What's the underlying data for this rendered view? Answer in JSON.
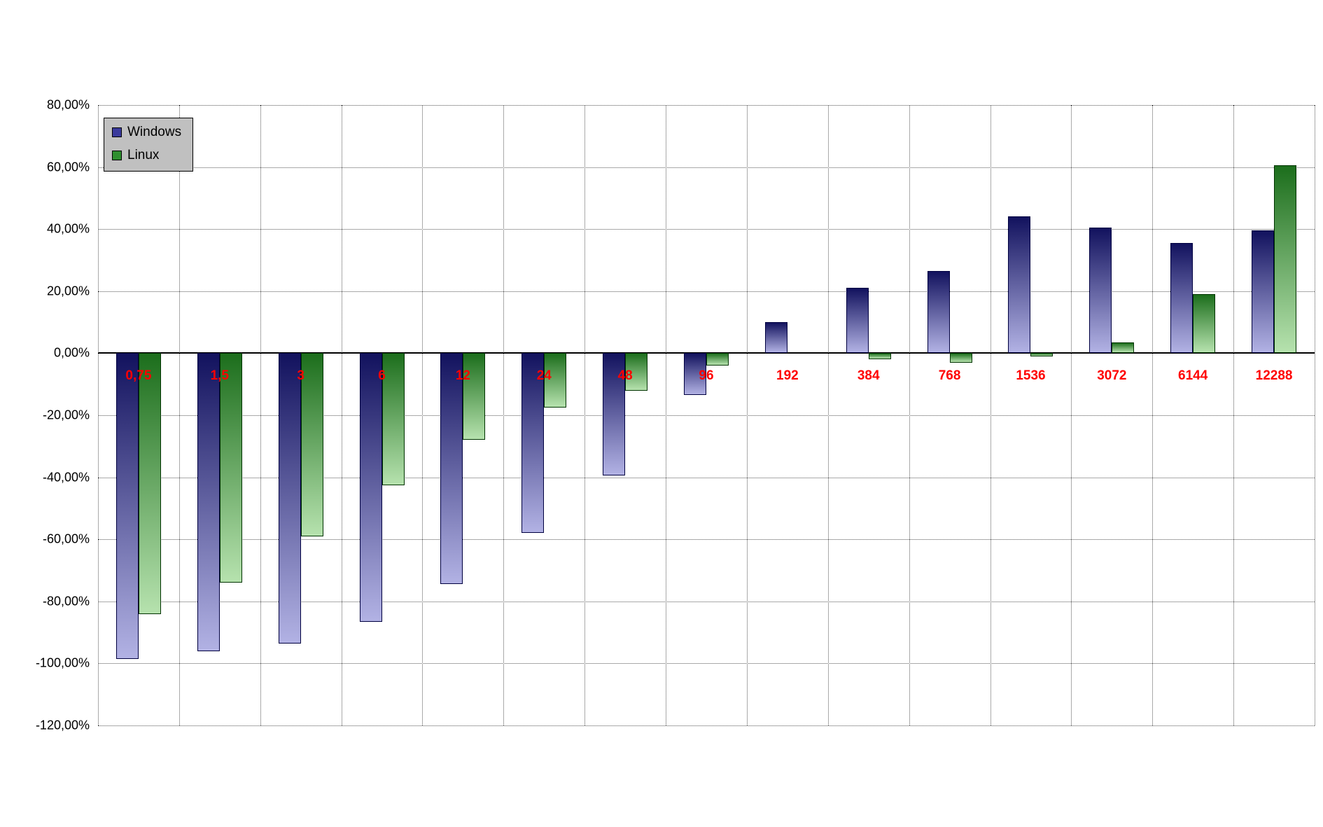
{
  "chart_data": {
    "type": "bar",
    "title": "",
    "xlabel": "",
    "ylabel": "",
    "ylim": [
      -120,
      80
    ],
    "grid": true,
    "categories": [
      "0,75",
      "1,5",
      "3",
      "6",
      "12",
      "24",
      "48",
      "96",
      "192",
      "384",
      "768",
      "1536",
      "3072",
      "6144",
      "12288"
    ],
    "category_label_color": "#ff0000",
    "series": [
      {
        "name": "Windows",
        "values": [
          -98.5,
          -96,
          -93.5,
          -86.5,
          -74.5,
          -58,
          -39.5,
          -13.5,
          10,
          21,
          26.5,
          44,
          40.5,
          35.5,
          39.5
        ],
        "color_top": "#12125e",
        "color_bottom": "#b2b2e4",
        "border_color": "#000040",
        "legend_color": "#3a3a9c"
      },
      {
        "name": "Linux",
        "values": [
          -84,
          -74,
          -59,
          -42.5,
          -28,
          -17.5,
          -12,
          -4,
          0,
          -2,
          -3,
          -1,
          3.5,
          19,
          60.5
        ],
        "color_top": "#1c6e1c",
        "color_bottom": "#b6e2ae",
        "border_color": "#003300",
        "legend_color": "#2f8f2f"
      }
    ],
    "y_axis": {
      "min": -120,
      "max": 80,
      "step": 20,
      "tick_labels": [
        "80,00%",
        "60,00%",
        "40,00%",
        "20,00%",
        "0,00%",
        "-20,00%",
        "-40,00%",
        "-60,00%",
        "-80,00%",
        "-100,00%",
        "-120,00%"
      ]
    },
    "legend": {
      "position": "top-left",
      "entries": [
        "Windows",
        "Linux"
      ]
    },
    "colors": {
      "gridline": "#555555",
      "axis": "#000000",
      "background": "#ffffff",
      "legend_background": "#c0c0c0"
    }
  }
}
